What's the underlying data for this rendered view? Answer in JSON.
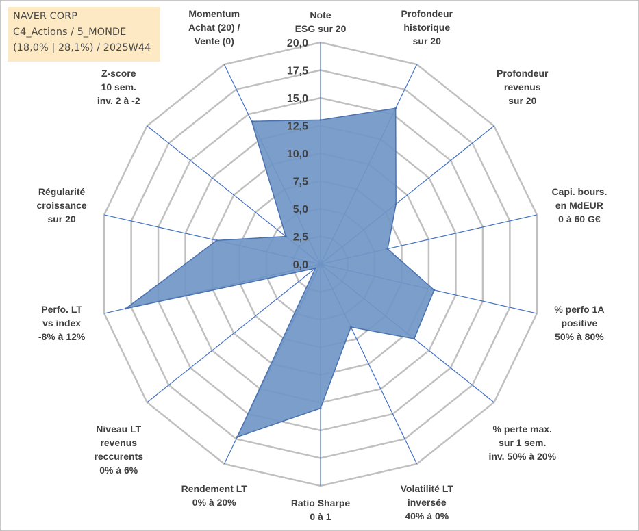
{
  "info_box": {
    "line1": "NAVER CORP",
    "line2": "C4_Actions / 5_MONDE",
    "line3": "(18,0% | 28,1%) / 2025W44"
  },
  "colors": {
    "fill": "#7096c6",
    "stroke": "#4a72b0",
    "grid": "#c0c0c0",
    "spoke": "#4472c4"
  },
  "chart_data": {
    "type": "radar",
    "title": "",
    "rlim": [
      0,
      20
    ],
    "tick_labels": [
      "0,0",
      "2,5",
      "5,0",
      "7,5",
      "10,0",
      "12,5",
      "15,0",
      "17,5",
      "20,0"
    ],
    "grid": true,
    "axes": [
      {
        "lines": [
          "Note",
          "ESG sur 20"
        ]
      },
      {
        "lines": [
          "Profondeur",
          "historique",
          "sur 20"
        ]
      },
      {
        "lines": [
          "Profondeur",
          "revenus",
          "sur 20"
        ]
      },
      {
        "lines": [
          "Capi. bours.",
          "en MdEUR",
          "0 à 60 G€"
        ]
      },
      {
        "lines": [
          "% perfo 1A",
          "positive",
          "50% à 80%"
        ]
      },
      {
        "lines": [
          "% perte max.",
          "sur 1 sem.",
          "inv. 50% à 20%"
        ]
      },
      {
        "lines": [
          "Volatilité LT",
          "inversée",
          "40% à 0%"
        ]
      },
      {
        "lines": [
          "Ratio Sharpe",
          "0 à 1"
        ]
      },
      {
        "lines": [
          "Rendement LT",
          "0% à 20%"
        ]
      },
      {
        "lines": [
          "Niveau LT",
          "revenus",
          "reccurents",
          "0% à 6%"
        ]
      },
      {
        "lines": [
          "Perfo. LT",
          "vs index",
          "-8% à 12%"
        ]
      },
      {
        "lines": [
          "Régularité",
          "croissance",
          "sur 20"
        ]
      },
      {
        "lines": [
          "Z-score",
          "10 sem.",
          "inv. 2 à -2"
        ]
      },
      {
        "lines": [
          "Momentum",
          "Achat (20) /",
          "Vente (0)"
        ]
      }
    ],
    "values": [
      13.0,
      15.6,
      8.7,
      6.2,
      10.5,
      10.8,
      6.3,
      13.0,
      17.3,
      0.6,
      18.0,
      9.6,
      4.0,
      14.3
    ]
  }
}
